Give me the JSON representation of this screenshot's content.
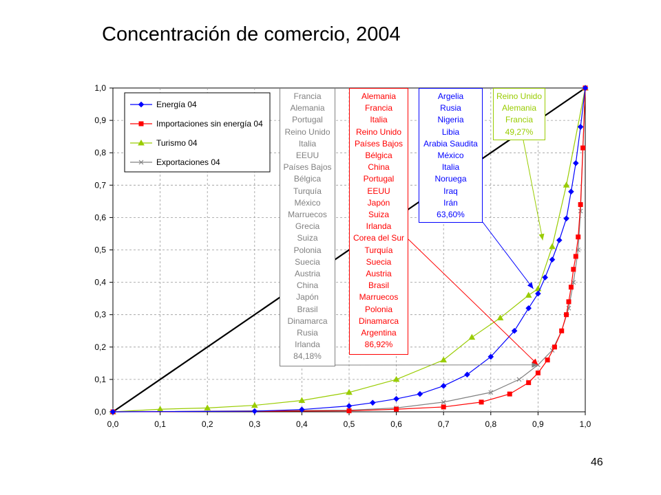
{
  "page": {
    "title": "Concentración de comercio, 2004",
    "page_number": "46"
  },
  "chart_data": {
    "type": "line",
    "title": "Concentración de comercio, 2004",
    "xlabel": "",
    "ylabel": "",
    "xlim": [
      0,
      1
    ],
    "ylim": [
      0,
      1
    ],
    "x_ticks": [
      "0,0",
      "0,1",
      "0,2",
      "0,3",
      "0,4",
      "0,5",
      "0,6",
      "0,7",
      "0,8",
      "0,9",
      "1,0"
    ],
    "y_ticks": [
      "0,0",
      "0,1",
      "0,2",
      "0,3",
      "0,4",
      "0,5",
      "0,6",
      "0,7",
      "0,8",
      "0,9",
      "1,0"
    ],
    "grid": "dashed",
    "legend_position": "top-left",
    "diagonal": {
      "x": [
        0,
        1
      ],
      "y": [
        0,
        1
      ],
      "color": "#000000"
    },
    "series": [
      {
        "name": "Energía 04",
        "color": "#0000ff",
        "marker": "diamond",
        "x": [
          0.0,
          0.3,
          0.4,
          0.5,
          0.55,
          0.6,
          0.65,
          0.7,
          0.75,
          0.8,
          0.85,
          0.88,
          0.9,
          0.915,
          0.93,
          0.945,
          0.96,
          0.97,
          0.98,
          0.99,
          1.0
        ],
        "y": [
          0.0,
          0.002,
          0.007,
          0.018,
          0.028,
          0.04,
          0.055,
          0.08,
          0.115,
          0.17,
          0.25,
          0.32,
          0.365,
          0.415,
          0.47,
          0.53,
          0.597,
          0.68,
          0.768,
          0.88,
          1.0
        ]
      },
      {
        "name": "Importaciones sin energía 04",
        "color": "#ff0000",
        "marker": "square",
        "x": [
          0.0,
          0.5,
          0.6,
          0.7,
          0.78,
          0.84,
          0.88,
          0.9,
          0.92,
          0.935,
          0.95,
          0.96,
          0.965,
          0.97,
          0.975,
          0.98,
          0.985,
          0.99,
          0.995,
          1.0
        ],
        "y": [
          0.0,
          0.003,
          0.008,
          0.015,
          0.03,
          0.055,
          0.09,
          0.12,
          0.16,
          0.2,
          0.25,
          0.3,
          0.34,
          0.385,
          0.44,
          0.48,
          0.54,
          0.64,
          0.815,
          1.0
        ]
      },
      {
        "name": "Turismo 04",
        "color": "#99cc00",
        "marker": "triangle",
        "x": [
          0.0,
          0.1,
          0.2,
          0.3,
          0.4,
          0.5,
          0.6,
          0.7,
          0.76,
          0.82,
          0.88,
          0.9,
          0.93,
          0.96,
          1.0
        ],
        "y": [
          0.0,
          0.008,
          0.012,
          0.02,
          0.035,
          0.06,
          0.1,
          0.16,
          0.23,
          0.29,
          0.36,
          0.38,
          0.51,
          0.7,
          1.0
        ]
      },
      {
        "name": "Exportaciones 04",
        "color": "#808080",
        "marker": "x",
        "x": [
          0.0,
          0.5,
          0.6,
          0.7,
          0.8,
          0.86,
          0.9,
          0.93,
          0.95,
          0.965,
          0.975,
          0.985,
          0.99,
          1.0
        ],
        "y": [
          0.0,
          0.005,
          0.012,
          0.03,
          0.06,
          0.1,
          0.145,
          0.19,
          0.25,
          0.32,
          0.4,
          0.5,
          0.62,
          1.0
        ]
      }
    ],
    "annotations": [
      {
        "color": "#808080",
        "items": [
          "Francia",
          "Alemania",
          "Portugal",
          "Reino Unido",
          "Italia",
          "EEUU",
          "Países Bajos",
          "Bélgica",
          "Turquía",
          "México",
          "Marruecos",
          "Grecia",
          "Suiza",
          "Polonia",
          "Suecia",
          "Austria",
          "China",
          "Japón",
          "Brasil",
          "Dinamarca",
          "Rusia",
          "Irlanda",
          "84,18%"
        ],
        "arrow_to": {
          "x": 0.9,
          "y": 0.145
        }
      },
      {
        "color": "#ff0000",
        "items": [
          "Alemania",
          "Francia",
          "Italia",
          "Reino Unido",
          "Países Bajos",
          "Bélgica",
          "China",
          "Portugal",
          "EEUU",
          "Japón",
          "Suiza",
          "Irlanda",
          "Corea del Sur",
          "Turquía",
          "Suecia",
          "Austria",
          "Brasil",
          "Marruecos",
          "Polonia",
          "Dinamarca",
          "Argentina",
          "86,92%"
        ],
        "arrow_to": {
          "x": 0.9,
          "y": 0.145
        }
      },
      {
        "color": "#0000ff",
        "items": [
          "Argelia",
          "Rusia",
          "Nigeria",
          "Libia",
          "Arabia Saudita",
          "México",
          "Italia",
          "Noruega",
          "Iraq",
          "Irán",
          "63,60%"
        ],
        "arrow_to": {
          "x": 0.89,
          "y": 0.38
        }
      },
      {
        "color": "#99cc00",
        "items": [
          "Reino Unido",
          "Alemania",
          "Francia",
          "49,27%"
        ],
        "arrow_to": {
          "x": 0.91,
          "y": 0.53
        }
      }
    ]
  }
}
